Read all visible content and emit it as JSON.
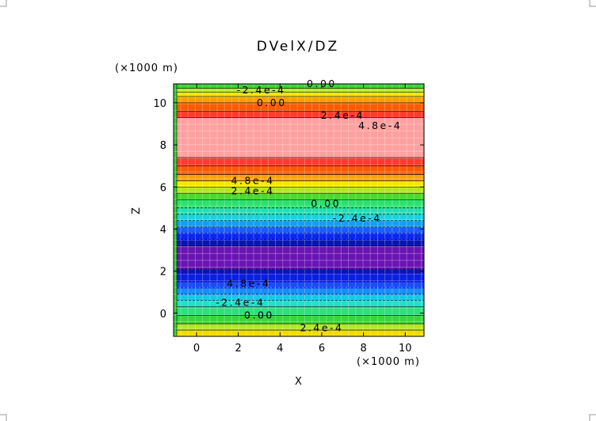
{
  "chart_data": {
    "type": "heatmap",
    "title": "DVelX/DZ",
    "xlabel": "X",
    "ylabel": "Z",
    "x_units": "(×1000 m)",
    "y_units": "(×1000 m)",
    "xlim": [
      -1.1,
      10.9
    ],
    "ylim": [
      -1.1,
      10.9
    ],
    "x_ticks": [
      0,
      2,
      4,
      6,
      8,
      10
    ],
    "y_ticks": [
      0,
      2,
      4,
      6,
      8,
      10
    ],
    "grid": false,
    "bands": [
      {
        "z0": -1.1,
        "z1": -0.8,
        "color": "#f2dc00"
      },
      {
        "z0": -0.8,
        "z1": -0.5,
        "color": "#b4e61e"
      },
      {
        "z0": -0.5,
        "z1": -0.1,
        "color": "#3ad43a"
      },
      {
        "z0": -0.1,
        "z1": 0.3,
        "color": "#2ce07a"
      },
      {
        "z0": 0.3,
        "z1": 0.6,
        "color": "#20e0c8"
      },
      {
        "z0": 0.6,
        "z1": 0.9,
        "color": "#18c8e6"
      },
      {
        "z0": 0.9,
        "z1": 1.2,
        "color": "#1a8cff"
      },
      {
        "z0": 1.2,
        "z1": 1.5,
        "color": "#1a4cff"
      },
      {
        "z0": 1.5,
        "z1": 1.9,
        "color": "#0a1ee6"
      },
      {
        "z0": 1.9,
        "z1": 2.1,
        "color": "#0a14b4"
      },
      {
        "z0": 2.1,
        "z1": 3.2,
        "color": "#6a14b4"
      },
      {
        "z0": 3.2,
        "z1": 3.5,
        "color": "#0a14b4"
      },
      {
        "z0": 3.5,
        "z1": 3.8,
        "color": "#0a28e6"
      },
      {
        "z0": 3.8,
        "z1": 4.1,
        "color": "#1a5cff"
      },
      {
        "z0": 4.1,
        "z1": 4.4,
        "color": "#189cf0"
      },
      {
        "z0": 4.4,
        "z1": 4.7,
        "color": "#18d2e0"
      },
      {
        "z0": 4.7,
        "z1": 5.0,
        "color": "#20e0b4"
      },
      {
        "z0": 5.0,
        "z1": 5.4,
        "color": "#2ce06e"
      },
      {
        "z0": 5.4,
        "z1": 5.7,
        "color": "#46dc28"
      },
      {
        "z0": 5.7,
        "z1": 6.0,
        "color": "#b4e61e"
      },
      {
        "z0": 6.0,
        "z1": 6.3,
        "color": "#f5e600"
      },
      {
        "z0": 6.3,
        "z1": 6.6,
        "color": "#ffa000"
      },
      {
        "z0": 6.6,
        "z1": 7.0,
        "color": "#ff5a00"
      },
      {
        "z0": 7.0,
        "z1": 7.4,
        "color": "#ff3c2a"
      },
      {
        "z0": 7.4,
        "z1": 9.3,
        "color": "#ffa0a0"
      },
      {
        "z0": 9.3,
        "z1": 9.6,
        "color": "#ff3c2a"
      },
      {
        "z0": 9.6,
        "z1": 10.0,
        "color": "#ff5a00"
      },
      {
        "z0": 10.0,
        "z1": 10.3,
        "color": "#ffa000"
      },
      {
        "z0": 10.3,
        "z1": 10.5,
        "color": "#f5e600"
      },
      {
        "z0": 10.5,
        "z1": 10.7,
        "color": "#b4e61e"
      },
      {
        "z0": 10.7,
        "z1": 10.9,
        "color": "#3ad43a"
      }
    ],
    "contour_labels": [
      {
        "text": "0.00",
        "x": 6.0,
        "z": 10.9
      },
      {
        "text": "-2.4e-4",
        "x": 3.1,
        "z": 10.6
      },
      {
        "text": "0.00",
        "x": 3.6,
        "z": 10.0
      },
      {
        "text": "2.4e-4",
        "x": 7.0,
        "z": 9.4
      },
      {
        "text": "4.8e-4",
        "x": 8.8,
        "z": 8.9
      },
      {
        "text": "4.8e-4",
        "x": 2.7,
        "z": 6.3
      },
      {
        "text": "2.4e-4",
        "x": 2.7,
        "z": 5.8
      },
      {
        "text": "0.00",
        "x": 6.2,
        "z": 5.2
      },
      {
        "text": "-2.4e-4",
        "x": 7.7,
        "z": 4.5
      },
      {
        "text": "4.8e-4",
        "x": 2.5,
        "z": 1.4
      },
      {
        "text": "-2.4e-4",
        "x": 2.1,
        "z": 0.5
      },
      {
        "text": "0.00",
        "x": 3.0,
        "z": -0.1
      },
      {
        "text": "2.4e-4",
        "x": 6.0,
        "z": -0.7
      }
    ]
  }
}
